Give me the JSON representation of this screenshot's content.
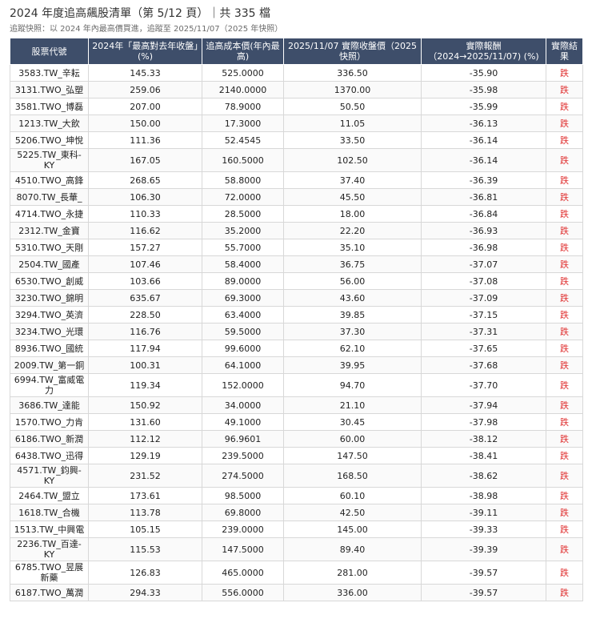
{
  "header": {
    "title": "2024 年度追高飆股清單（第 5/12 頁）｜共 335 檔",
    "subtitle": "追蹤快照：以 2024 年內最高價買進，追蹤至 2025/11/07（2025 年快照）"
  },
  "table": {
    "columns": [
      "股票代號",
      "2024年「最高對去年收盤」(%)",
      "追高成本價(年內最高)",
      "2025/11/07 實際收盤價（2025快照）",
      "實際報酬（2024→2025/11/07) (%)",
      "實際結果"
    ],
    "rows": [
      {
        "code": "3583.TW_辛耘",
        "pct": "145.33",
        "cost": "525.0000",
        "close": "336.50",
        "ret": "-35.90",
        "result": "跌"
      },
      {
        "code": "3131.TWO_弘塑",
        "pct": "259.06",
        "cost": "2140.0000",
        "close": "1370.00",
        "ret": "-35.98",
        "result": "跌"
      },
      {
        "code": "3581.TWO_博磊",
        "pct": "207.00",
        "cost": "78.9000",
        "close": "50.50",
        "ret": "-35.99",
        "result": "跌"
      },
      {
        "code": "1213.TW_大飲",
        "pct": "150.00",
        "cost": "17.3000",
        "close": "11.05",
        "ret": "-36.13",
        "result": "跌"
      },
      {
        "code": "5206.TWO_坤悅",
        "pct": "111.36",
        "cost": "52.4545",
        "close": "33.50",
        "ret": "-36.14",
        "result": "跌"
      },
      {
        "code": "5225.TW_東科-KY",
        "pct": "167.05",
        "cost": "160.5000",
        "close": "102.50",
        "ret": "-36.14",
        "result": "跌"
      },
      {
        "code": "4510.TWO_高鋒",
        "pct": "268.65",
        "cost": "58.8000",
        "close": "37.40",
        "ret": "-36.39",
        "result": "跌"
      },
      {
        "code": "8070.TW_長華_",
        "pct": "106.30",
        "cost": "72.0000",
        "close": "45.50",
        "ret": "-36.81",
        "result": "跌"
      },
      {
        "code": "4714.TWO_永捷",
        "pct": "110.33",
        "cost": "28.5000",
        "close": "18.00",
        "ret": "-36.84",
        "result": "跌"
      },
      {
        "code": "2312.TW_金寶",
        "pct": "116.62",
        "cost": "35.2000",
        "close": "22.20",
        "ret": "-36.93",
        "result": "跌"
      },
      {
        "code": "5310.TWO_天剛",
        "pct": "157.27",
        "cost": "55.7000",
        "close": "35.10",
        "ret": "-36.98",
        "result": "跌"
      },
      {
        "code": "2504.TW_國產",
        "pct": "107.46",
        "cost": "58.4000",
        "close": "36.75",
        "ret": "-37.07",
        "result": "跌"
      },
      {
        "code": "6530.TWO_創威",
        "pct": "103.66",
        "cost": "89.0000",
        "close": "56.00",
        "ret": "-37.08",
        "result": "跌"
      },
      {
        "code": "3230.TWO_錦明",
        "pct": "635.67",
        "cost": "69.3000",
        "close": "43.60",
        "ret": "-37.09",
        "result": "跌"
      },
      {
        "code": "3294.TWO_英濟",
        "pct": "228.50",
        "cost": "63.4000",
        "close": "39.85",
        "ret": "-37.15",
        "result": "跌"
      },
      {
        "code": "3234.TWO_光環",
        "pct": "116.76",
        "cost": "59.5000",
        "close": "37.30",
        "ret": "-37.31",
        "result": "跌"
      },
      {
        "code": "8936.TWO_國統",
        "pct": "117.94",
        "cost": "99.6000",
        "close": "62.10",
        "ret": "-37.65",
        "result": "跌"
      },
      {
        "code": "2009.TW_第一銅",
        "pct": "100.31",
        "cost": "64.1000",
        "close": "39.95",
        "ret": "-37.68",
        "result": "跌"
      },
      {
        "code": "6994.TW_富威電力",
        "pct": "119.34",
        "cost": "152.0000",
        "close": "94.70",
        "ret": "-37.70",
        "result": "跌"
      },
      {
        "code": "3686.TW_達能",
        "pct": "150.92",
        "cost": "34.0000",
        "close": "21.10",
        "ret": "-37.94",
        "result": "跌"
      },
      {
        "code": "1570.TWO_力肯",
        "pct": "131.60",
        "cost": "49.1000",
        "close": "30.45",
        "ret": "-37.98",
        "result": "跌"
      },
      {
        "code": "6186.TWO_新潤",
        "pct": "112.12",
        "cost": "96.9601",
        "close": "60.00",
        "ret": "-38.12",
        "result": "跌"
      },
      {
        "code": "6438.TWO_迅得",
        "pct": "129.19",
        "cost": "239.5000",
        "close": "147.50",
        "ret": "-38.41",
        "result": "跌"
      },
      {
        "code": "4571.TW_鈞興-KY",
        "pct": "231.52",
        "cost": "274.5000",
        "close": "168.50",
        "ret": "-38.62",
        "result": "跌"
      },
      {
        "code": "2464.TW_盟立",
        "pct": "173.61",
        "cost": "98.5000",
        "close": "60.10",
        "ret": "-38.98",
        "result": "跌"
      },
      {
        "code": "1618.TW_合機",
        "pct": "113.78",
        "cost": "69.8000",
        "close": "42.50",
        "ret": "-39.11",
        "result": "跌"
      },
      {
        "code": "1513.TW_中興電",
        "pct": "105.15",
        "cost": "239.0000",
        "close": "145.00",
        "ret": "-39.33",
        "result": "跌"
      },
      {
        "code": "2236.TW_百達-KY",
        "pct": "115.53",
        "cost": "147.5000",
        "close": "89.40",
        "ret": "-39.39",
        "result": "跌"
      },
      {
        "code": "6785.TWO_昱展新藥",
        "pct": "126.83",
        "cost": "465.0000",
        "close": "281.00",
        "ret": "-39.57",
        "result": "跌"
      },
      {
        "code": "6187.TWO_萬潤",
        "pct": "294.33",
        "cost": "556.0000",
        "close": "336.00",
        "ret": "-39.57",
        "result": "跌"
      }
    ]
  }
}
